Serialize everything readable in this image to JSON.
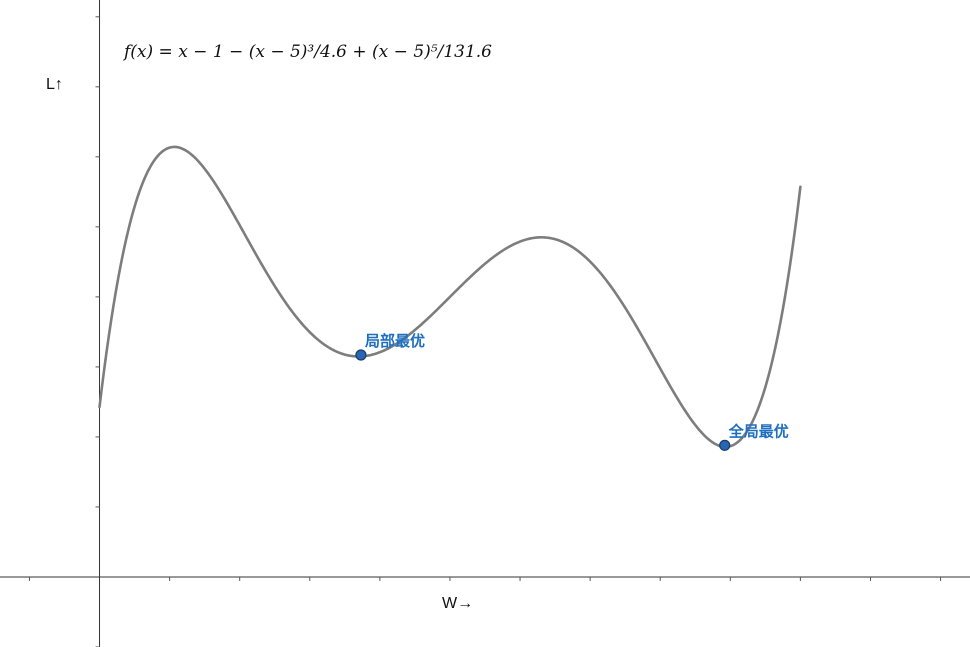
{
  "formula": "f(x) = x − 1 − (x − 5)³/4.6 + (x − 5)⁵/131.6",
  "colors": {
    "curve": "#7d7d7d",
    "point": "#2866b4",
    "label": "#1f6fbf",
    "axis": "#333333"
  },
  "chart_data": {
    "type": "line",
    "title": "",
    "xlabel": "W→",
    "ylabel": "L↑",
    "xlim": [
      -1.42,
      12.42
    ],
    "ylim": [
      -1.0,
      8.24
    ],
    "grid": false,
    "function": "f(x) = x - 1 - (x - 5)^3/4.6 + (x - 5)^5/131.6",
    "x_domain": [
      0,
      10
    ],
    "x_ticks": [
      -1,
      0,
      1,
      2,
      3,
      4,
      5,
      6,
      7,
      8,
      9,
      10,
      11,
      12
    ],
    "y_ticks": [
      -1,
      0,
      1,
      2,
      3,
      4,
      5,
      6,
      7,
      8
    ],
    "points": [
      {
        "label": "局部最优",
        "x": 3.73,
        "y": 3.17
      },
      {
        "label": "全局最优",
        "x": 8.92,
        "y": 1.88
      }
    ]
  }
}
